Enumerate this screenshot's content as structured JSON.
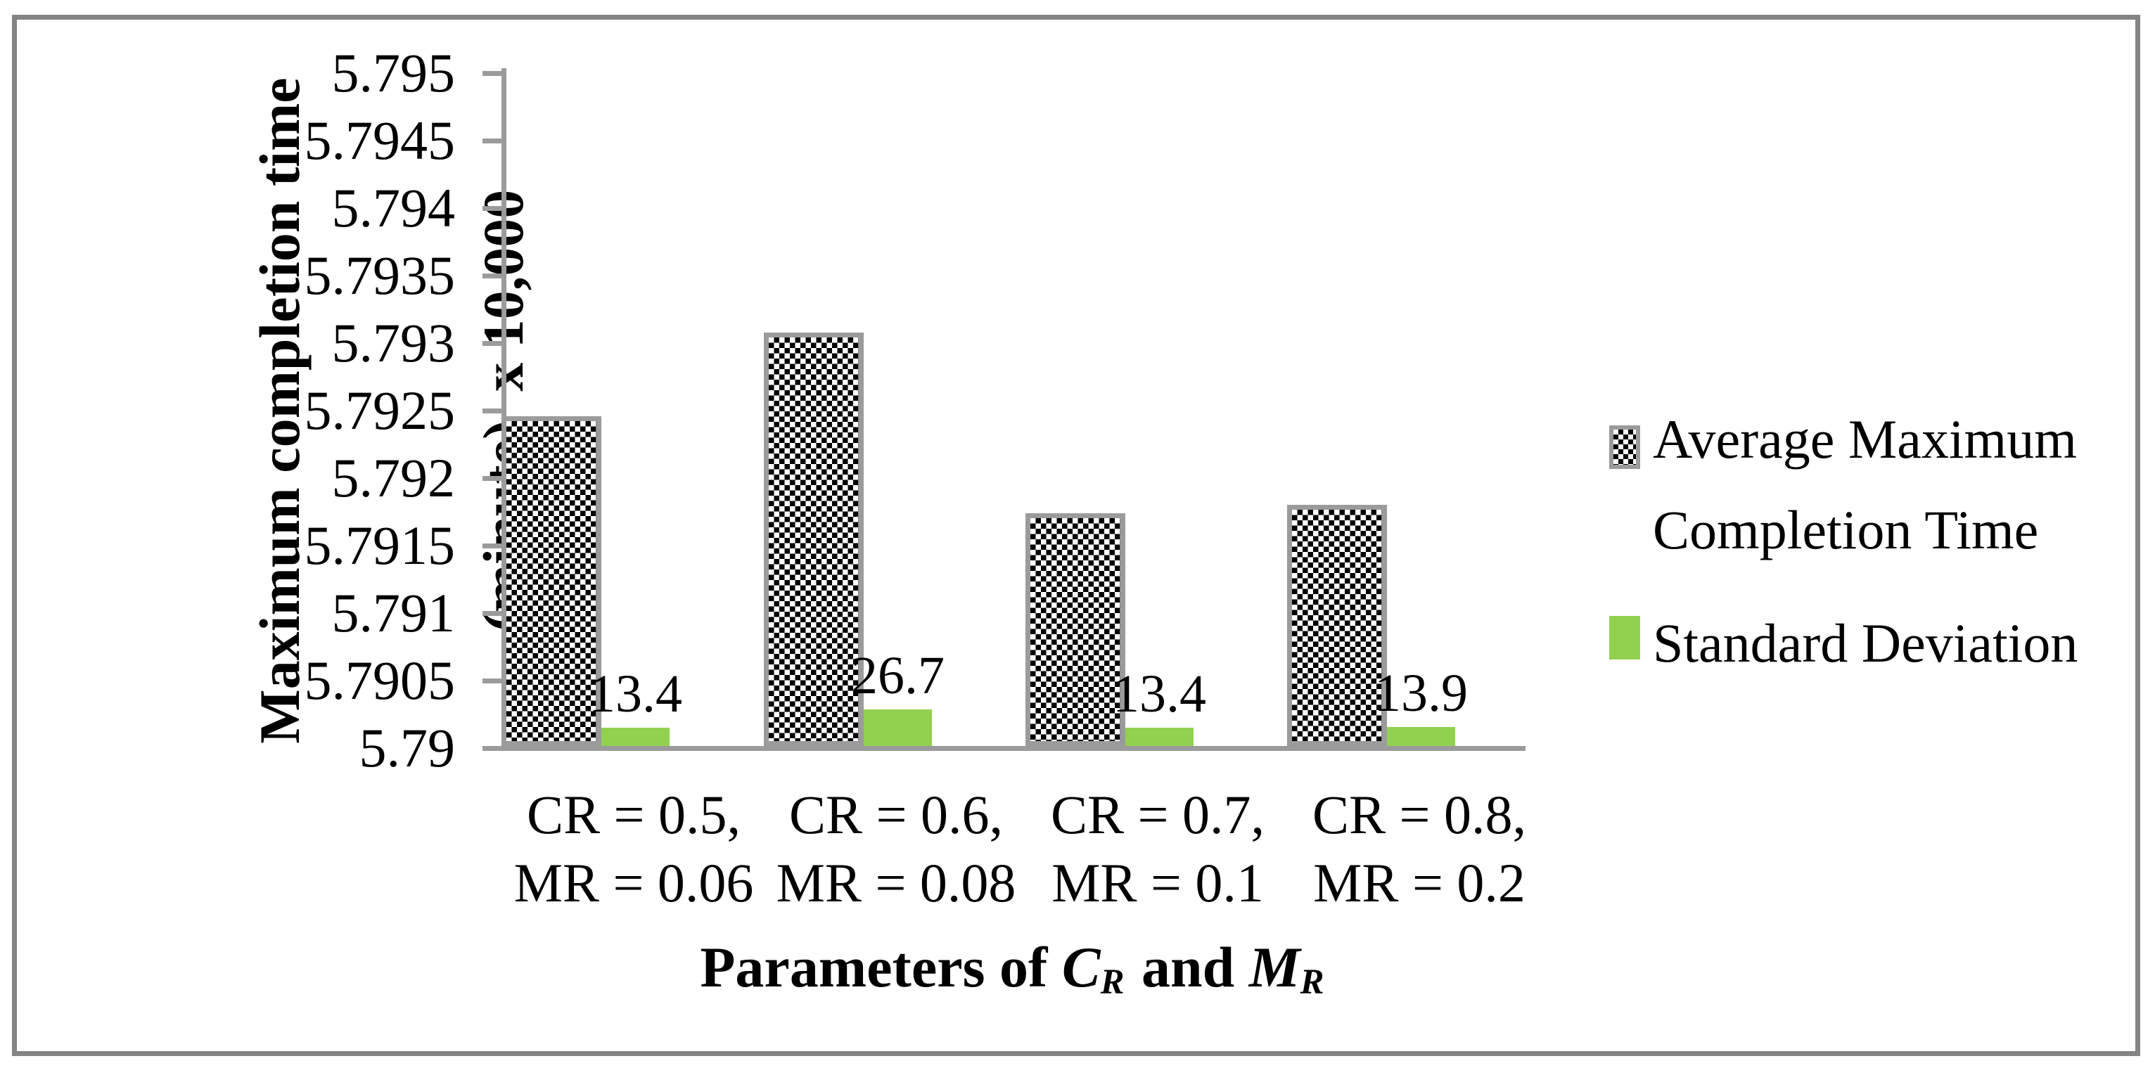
{
  "chart_data": {
    "type": "bar",
    "title": "",
    "categories": [
      [
        "CR = 0.5,",
        "MR = 0.06"
      ],
      [
        "CR = 0.6,",
        "MR = 0.08"
      ],
      [
        "CR = 0.7,",
        "MR = 0.1"
      ],
      [
        "CR = 0.8,",
        "MR = 0.2"
      ]
    ],
    "series": [
      {
        "name": "Average Maximum Completion Time",
        "style": "black-white-checker-pattern",
        "values": [
          5.79246,
          5.79308,
          5.79174,
          5.7918
        ],
        "unit": "minute x 10,000"
      },
      {
        "name": "Standard Deviation",
        "style": "solid-green",
        "color": "#92d050",
        "values": [
          13.4,
          26.7,
          13.4,
          13.9
        ],
        "data_labels": [
          "13.4",
          "26.7",
          "13.4",
          "13.9"
        ],
        "unit": "minute"
      }
    ],
    "ylabel_lines": [
      "Maximum completion time",
      "(minute)  x 10,000"
    ],
    "xlabel_parts": {
      "prefix": "Parameters of ",
      "var1": "C",
      "sub1": "R",
      "middle": " and ",
      "var2": "M",
      "sub2": "R"
    },
    "ylim": [
      5.79,
      5.795
    ],
    "ytick_step": 0.0005,
    "ytick_labels": [
      "5.79",
      "5.7905",
      "5.791",
      "5.7915",
      "5.792",
      "5.7925",
      "5.793",
      "5.7935",
      "5.794",
      "5.7945",
      "5.795"
    ],
    "legend_position": "right",
    "grid": false,
    "colors": {
      "axis_gray": "#9b9b9b",
      "frame_gray": "#848484",
      "std_dev_green": "#92d050",
      "pattern_fg": "#000000",
      "pattern_bg": "#ffffff"
    }
  },
  "legend": {
    "items": [
      {
        "label": "Average Maximum Completion Time",
        "swatch": "checker"
      },
      {
        "label": "Standard Deviation",
        "swatch": "green"
      }
    ]
  }
}
